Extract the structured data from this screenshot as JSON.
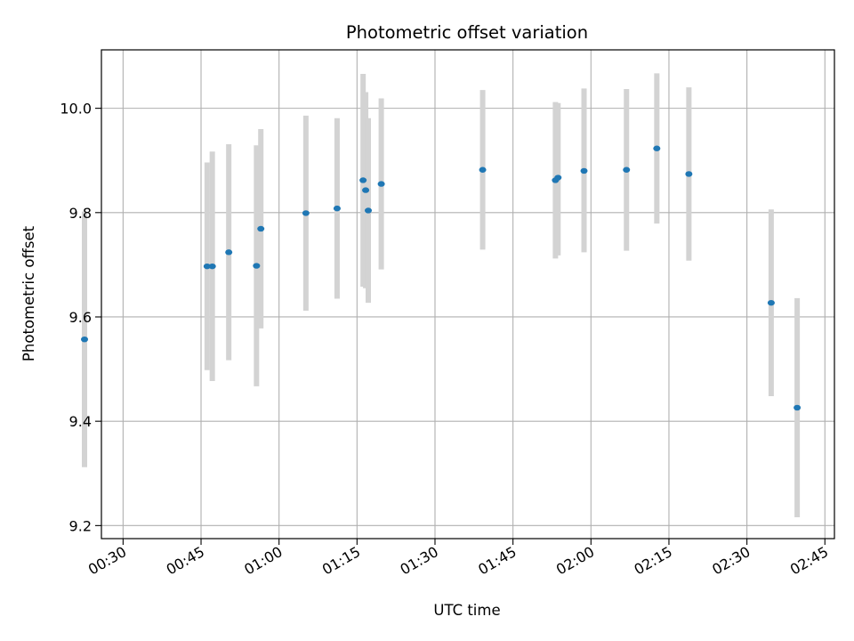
{
  "chart_data": {
    "type": "scatter",
    "title": "Photometric offset variation",
    "xlabel": "UTC time",
    "ylabel": "Photometric offset",
    "xlim": [
      "00:25:50",
      "02:46:50"
    ],
    "ylim": [
      9.175,
      10.112
    ],
    "grid": true,
    "x_ticks": [
      "00:30",
      "00:45",
      "01:00",
      "01:15",
      "01:30",
      "01:45",
      "02:00",
      "02:15",
      "02:30",
      "02:45"
    ],
    "y_ticks": [
      9.2,
      9.4,
      9.6,
      9.8,
      10.0
    ],
    "y_tick_labels": [
      "9.2",
      "9.4",
      "9.6",
      "9.8",
      "10.0"
    ],
    "marker_color": "#1f77b4",
    "errorbar_color": "#d3d3d3",
    "points": [
      {
        "x": "00:22:35",
        "y": 9.557,
        "low": 9.312,
        "high": 9.802
      },
      {
        "x": "00:46:10",
        "y": 9.697,
        "low": 9.498,
        "high": 9.896
      },
      {
        "x": "00:47:10",
        "y": 9.697,
        "low": 9.477,
        "high": 9.917
      },
      {
        "x": "00:50:20",
        "y": 9.724,
        "low": 9.517,
        "high": 9.931
      },
      {
        "x": "00:55:40",
        "y": 9.698,
        "low": 9.467,
        "high": 9.929
      },
      {
        "x": "00:56:30",
        "y": 9.769,
        "low": 9.578,
        "high": 9.96
      },
      {
        "x": "01:05:10",
        "y": 9.799,
        "low": 9.612,
        "high": 9.986
      },
      {
        "x": "01:11:10",
        "y": 9.808,
        "low": 9.635,
        "high": 9.981
      },
      {
        "x": "01:16:10",
        "y": 9.862,
        "low": 9.658,
        "high": 10.066
      },
      {
        "x": "01:16:40",
        "y": 9.843,
        "low": 9.655,
        "high": 10.031
      },
      {
        "x": "01:17:10",
        "y": 9.804,
        "low": 9.627,
        "high": 9.981
      },
      {
        "x": "01:19:40",
        "y": 9.855,
        "low": 9.691,
        "high": 10.019
      },
      {
        "x": "01:39:10",
        "y": 9.882,
        "low": 9.729,
        "high": 10.035
      },
      {
        "x": "01:53:10",
        "y": 9.862,
        "low": 9.712,
        "high": 10.012
      },
      {
        "x": "01:53:40",
        "y": 9.867,
        "low": 9.718,
        "high": 10.01
      },
      {
        "x": "01:58:40",
        "y": 9.88,
        "low": 9.724,
        "high": 10.038
      },
      {
        "x": "02:06:50",
        "y": 9.882,
        "low": 9.727,
        "high": 10.037
      },
      {
        "x": "02:12:40",
        "y": 9.923,
        "low": 9.779,
        "high": 10.067
      },
      {
        "x": "02:18:50",
        "y": 9.874,
        "low": 9.708,
        "high": 10.04
      },
      {
        "x": "02:34:40",
        "y": 9.627,
        "low": 9.448,
        "high": 9.806
      },
      {
        "x": "02:39:40",
        "y": 9.426,
        "low": 9.216,
        "high": 9.636
      }
    ]
  }
}
